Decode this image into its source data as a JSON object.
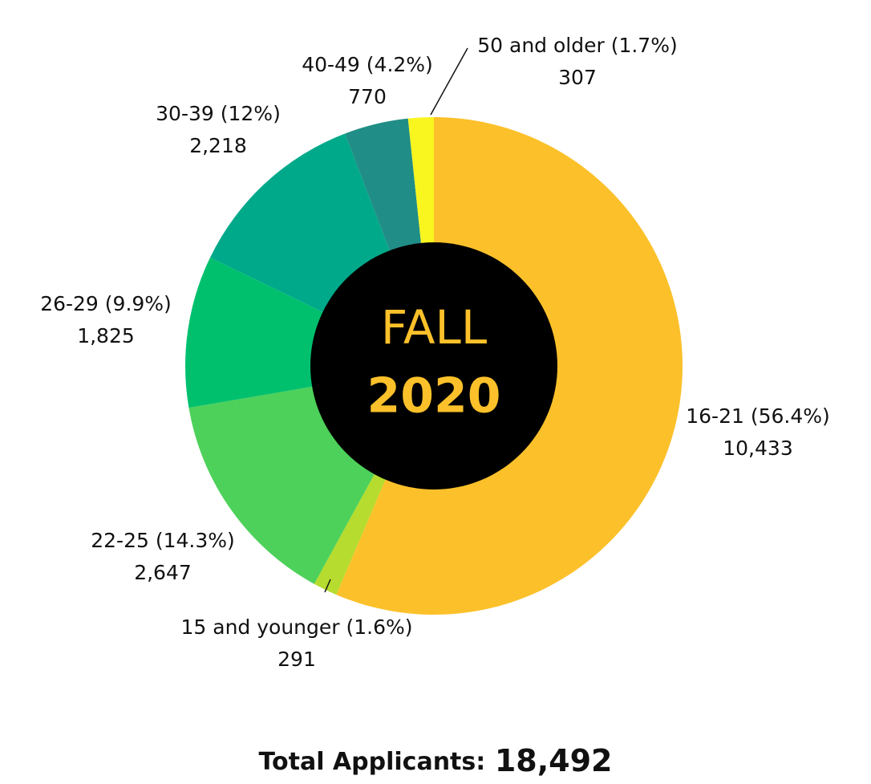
{
  "chart_data": {
    "type": "donut",
    "categories": [
      "16-21 (56.4%)",
      "15 and younger (1.6%)",
      "22-25 (14.3%)",
      "26-29 (9.9%)",
      "30-39 (12%)",
      "40-49 (4.2%)",
      "50 and older (1.7%)"
    ],
    "values": [
      10433,
      291,
      2647,
      1825,
      2218,
      770,
      307
    ],
    "value_labels": [
      "10,433",
      "291",
      "2,647",
      "1,825",
      "2,218",
      "770",
      "307"
    ],
    "colors": [
      "#fcc12a",
      "#b5dc2e",
      "#4dd15a",
      "#00c06e",
      "#00a98a",
      "#208e86",
      "#f9f51f"
    ],
    "center_text": [
      "FALL",
      "2020"
    ],
    "total_label": "Total Applicants:",
    "total_value": "18,492"
  }
}
